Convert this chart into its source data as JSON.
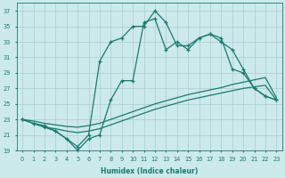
{
  "xlabel": "Humidex (Indice chaleur)",
  "bg_color": "#cce9ec",
  "grid_color": "#aacdd0",
  "line_color": "#1a7a6e",
  "xlim": [
    -0.5,
    23.5
  ],
  "ylim": [
    19,
    38
  ],
  "xticks": [
    0,
    1,
    2,
    3,
    4,
    5,
    6,
    7,
    8,
    9,
    10,
    11,
    12,
    13,
    14,
    15,
    16,
    17,
    18,
    19,
    20,
    21,
    22,
    23
  ],
  "yticks": [
    19,
    21,
    23,
    25,
    27,
    29,
    31,
    33,
    35,
    37
  ],
  "smooth1_x": [
    0,
    1,
    2,
    3,
    4,
    5,
    6,
    7,
    8,
    9,
    10,
    11,
    12,
    13,
    14,
    15,
    16,
    17,
    18,
    19,
    20,
    21,
    22,
    23
  ],
  "smooth1_y": [
    23.0,
    22.8,
    22.5,
    22.3,
    22.1,
    22.0,
    22.2,
    22.5,
    23.0,
    23.5,
    24.0,
    24.5,
    25.0,
    25.4,
    25.8,
    26.2,
    26.5,
    26.8,
    27.1,
    27.5,
    27.8,
    28.1,
    28.4,
    25.8
  ],
  "smooth2_x": [
    0,
    1,
    2,
    3,
    4,
    5,
    6,
    7,
    8,
    9,
    10,
    11,
    12,
    13,
    14,
    15,
    16,
    17,
    18,
    19,
    20,
    21,
    22,
    23
  ],
  "smooth2_y": [
    23.0,
    22.5,
    22.0,
    21.8,
    21.5,
    21.3,
    21.5,
    21.8,
    22.3,
    22.8,
    23.3,
    23.8,
    24.3,
    24.7,
    25.1,
    25.5,
    25.8,
    26.1,
    26.4,
    26.7,
    27.0,
    27.2,
    27.4,
    25.5
  ],
  "jagged1_x": [
    0,
    1,
    2,
    3,
    4,
    5,
    6,
    7,
    8,
    9,
    10,
    11,
    12,
    13,
    14,
    15,
    16,
    17,
    18,
    19,
    20,
    21,
    22,
    23
  ],
  "jagged1_y": [
    23.0,
    22.5,
    22.2,
    21.5,
    20.5,
    19.5,
    21.0,
    30.5,
    33.0,
    33.5,
    35.0,
    35.0,
    37.0,
    35.5,
    32.5,
    32.5,
    33.5,
    34.0,
    33.5,
    29.5,
    29.0,
    27.0,
    26.0,
    25.5
  ],
  "jagged2_x": [
    0,
    1,
    2,
    3,
    4,
    5,
    6,
    7,
    8,
    9,
    10,
    11,
    12,
    13,
    14,
    15,
    16,
    17,
    18,
    19,
    20,
    21,
    22,
    23
  ],
  "jagged2_y": [
    23.0,
    22.5,
    22.0,
    21.5,
    20.5,
    19.0,
    20.5,
    21.0,
    25.5,
    28.0,
    28.0,
    35.5,
    36.0,
    32.0,
    33.0,
    32.0,
    33.5,
    34.0,
    33.0,
    32.0,
    29.5,
    27.0,
    26.0,
    25.5
  ]
}
